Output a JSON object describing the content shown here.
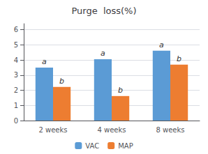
{
  "chart_data": {
    "type": "bar",
    "title": "Purge  loss(%)",
    "categories": [
      "2 weeks",
      "4 weeks",
      "8 weeks"
    ],
    "series": [
      {
        "name": "VAC",
        "color": "#5B9BD5",
        "values": [
          3.5,
          4.05,
          4.62
        ],
        "annotations": [
          "a",
          "a",
          "a"
        ]
      },
      {
        "name": "MAP",
        "color": "#ED7D31",
        "values": [
          2.22,
          1.62,
          3.7
        ],
        "annotations": [
          "b",
          "b",
          "b"
        ]
      }
    ],
    "ylim": [
      0,
      6.4
    ],
    "yticks": [
      0,
      1,
      2,
      3,
      4,
      5,
      6
    ],
    "grid": true,
    "legend": "bottom"
  }
}
